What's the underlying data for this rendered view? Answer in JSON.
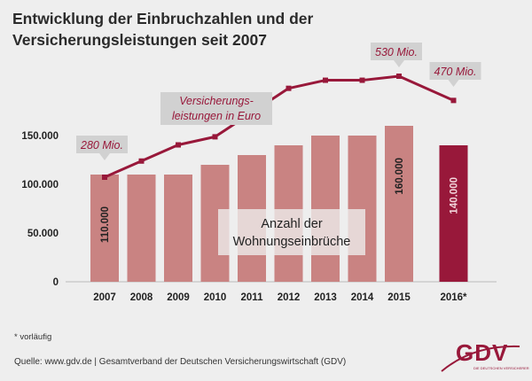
{
  "title": {
    "line1": "Entwicklung der Einbruchzahlen und der",
    "line2": "Versicherungsleistungen seit 2007"
  },
  "footnote": "* vorläufig",
  "source": "Quelle: www.gdv.de | Gesamtverband der Deutschen Versicherungswirtschaft (GDV)",
  "logo": {
    "text": "GDV",
    "tagline": "DIE DEUTSCHEN VERSICHERER"
  },
  "colors": {
    "bar": "#c98382",
    "bar_highlight": "#98183a",
    "line": "#98183a",
    "callout": "#d1d1d1",
    "background": "#eeeeee"
  },
  "chart_data": {
    "type": "bar",
    "categories": [
      "2007",
      "2008",
      "2009",
      "2010",
      "2011",
      "2012",
      "2013",
      "2014",
      "2015",
      "2016*"
    ],
    "highlight_category": "2016*",
    "bar_series_label": {
      "line1": "Anzahl der",
      "line2": "Wohnungseinbrüche"
    },
    "values": [
      110000,
      110000,
      110000,
      120000,
      130000,
      140000,
      150000,
      150000,
      160000,
      140000
    ],
    "bar_value_labels": [
      {
        "category": "2007",
        "text": "110.000"
      },
      {
        "category": "2015",
        "text": "160.000"
      },
      {
        "category": "2016*",
        "text": "140.000"
      }
    ],
    "ylim": [
      0,
      180000
    ],
    "y_ticks": [
      {
        "value": 0,
        "label": "0"
      },
      {
        "value": 50000,
        "label": "50.000"
      },
      {
        "value": 100000,
        "label": "100.000"
      },
      {
        "value": 150000,
        "label": "150.000"
      }
    ],
    "line_series": {
      "label": {
        "line1": "Versicherungs-",
        "line2": "leistungen in Euro"
      },
      "values_mio_eur": [
        280,
        320,
        360,
        380,
        440,
        500,
        520,
        520,
        530,
        470
      ],
      "ylim": [
        0,
        850
      ],
      "callouts": [
        {
          "category": "2007",
          "text": "280 Mio."
        },
        {
          "category": "2015",
          "text": "530 Mio."
        },
        {
          "category": "2016*",
          "text": "470 Mio."
        }
      ]
    }
  }
}
